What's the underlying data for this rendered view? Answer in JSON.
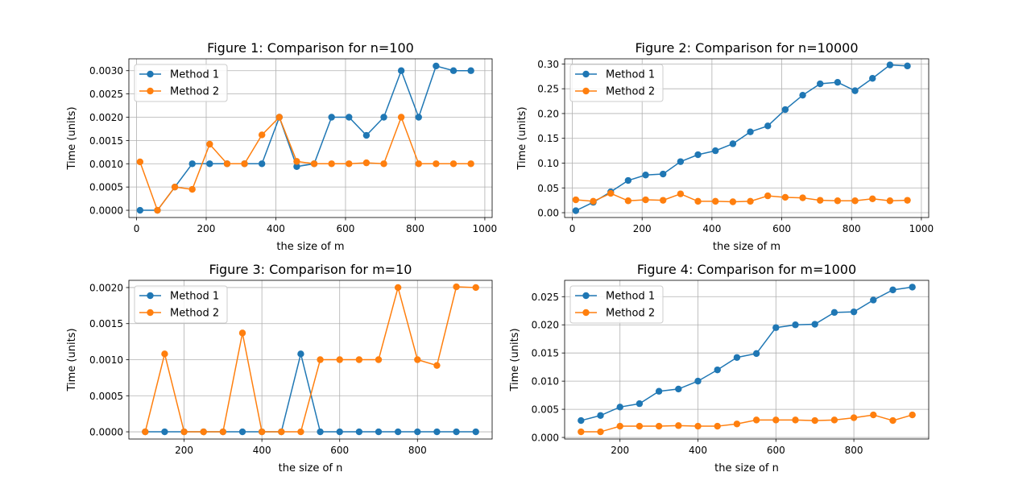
{
  "colors": {
    "method1": "#1f77b4",
    "method2": "#ff7f0e",
    "grid": "#b0b0b0"
  },
  "chart_data": [
    {
      "type": "line",
      "title": "Figure 1: Comparison for n=100",
      "xlabel": "the size of m",
      "ylabel": "Time (units)",
      "xlim": [
        -22,
        1021
      ],
      "ylim": [
        -0.000155,
        0.003255
      ],
      "xticks": [
        0,
        200,
        400,
        600,
        800,
        1000
      ],
      "xtick_labels": [
        "0",
        "200",
        "400",
        "600",
        "800",
        "1000"
      ],
      "yticks": [
        0,
        0.0005,
        0.001,
        0.0015,
        0.002,
        0.0025,
        0.003
      ],
      "ytick_labels": [
        "0.0000",
        "0.0005",
        "0.0010",
        "0.0015",
        "0.0020",
        "0.0025",
        "0.0030"
      ],
      "grid": true,
      "legend": "upper left",
      "x": [
        10,
        60,
        110,
        160,
        210,
        260,
        310,
        360,
        410,
        460,
        510,
        560,
        610,
        660,
        710,
        760,
        810,
        860,
        910,
        960
      ],
      "series": [
        {
          "name": "Method 1",
          "values": [
            0.0,
            0.0,
            0.0005,
            0.001,
            0.001,
            0.001,
            0.001,
            0.001,
            0.002,
            0.00094,
            0.001,
            0.002,
            0.002,
            0.00161,
            0.002,
            0.003,
            0.002,
            0.0031,
            0.003,
            0.003
          ]
        },
        {
          "name": "Method 2",
          "values": [
            0.00104,
            0.0,
            0.0005,
            0.00045,
            0.00142,
            0.001,
            0.001,
            0.00162,
            0.002,
            0.00105,
            0.001,
            0.001,
            0.001,
            0.00102,
            0.001,
            0.002,
            0.001,
            0.001,
            0.001,
            0.001
          ]
        }
      ]
    },
    {
      "type": "line",
      "title": "Figure 2: Comparison for n=10000",
      "xlabel": "the size of m",
      "ylabel": "Time (units)",
      "xlim": [
        -22,
        1021
      ],
      "ylim": [
        -0.0097,
        0.3104
      ],
      "xticks": [
        0,
        200,
        400,
        600,
        800,
        1000
      ],
      "xtick_labels": [
        "0",
        "200",
        "400",
        "600",
        "800",
        "1000"
      ],
      "yticks": [
        0,
        0.05,
        0.1,
        0.15,
        0.2,
        0.25,
        0.3
      ],
      "ytick_labels": [
        "0.00",
        "0.05",
        "0.10",
        "0.15",
        "0.20",
        "0.25",
        "0.30"
      ],
      "grid": true,
      "legend": "upper left",
      "x": [
        10,
        60,
        110,
        160,
        210,
        260,
        310,
        360,
        410,
        460,
        510,
        560,
        610,
        660,
        710,
        760,
        810,
        860,
        910,
        960
      ],
      "series": [
        {
          "name": "Method 1",
          "values": [
            0.004,
            0.021,
            0.042,
            0.065,
            0.076,
            0.078,
            0.103,
            0.117,
            0.125,
            0.139,
            0.163,
            0.175,
            0.208,
            0.237,
            0.26,
            0.263,
            0.246,
            0.271,
            0.298,
            0.296
          ]
        },
        {
          "name": "Method 2",
          "values": [
            0.026,
            0.023,
            0.039,
            0.024,
            0.026,
            0.025,
            0.038,
            0.023,
            0.023,
            0.022,
            0.023,
            0.034,
            0.031,
            0.03,
            0.025,
            0.024,
            0.024,
            0.028,
            0.024,
            0.025
          ]
        }
      ]
    },
    {
      "type": "line",
      "title": "Figure 3: Comparison for m=10",
      "xlabel": "the size of n",
      "ylabel": "Time (units)",
      "xlim": [
        58,
        992
      ],
      "ylim": [
        -0.0001,
        0.0021
      ],
      "xticks": [
        200,
        400,
        600,
        800
      ],
      "xtick_labels": [
        "200",
        "400",
        "600",
        "800"
      ],
      "yticks": [
        0,
        0.0005,
        0.001,
        0.0015,
        0.002
      ],
      "ytick_labels": [
        "0.0000",
        "0.0005",
        "0.0010",
        "0.0015",
        "0.0020"
      ],
      "grid": true,
      "legend": "upper left",
      "x": [
        100,
        150,
        200,
        250,
        300,
        350,
        400,
        450,
        500,
        550,
        600,
        650,
        700,
        750,
        800,
        850,
        900,
        950
      ],
      "series": [
        {
          "name": "Method 1",
          "values": [
            0,
            0,
            0,
            0,
            0,
            0,
            0,
            0,
            0.00108,
            0,
            0,
            0,
            0,
            0,
            0,
            0,
            0,
            0
          ]
        },
        {
          "name": "Method 2",
          "values": [
            0,
            0.00108,
            0,
            0,
            0,
            0.00137,
            0,
            0,
            0,
            0.001,
            0.001,
            0.001,
            0.001,
            0.002,
            0.001,
            0.00092,
            0.00201,
            0.002
          ]
        }
      ]
    },
    {
      "type": "line",
      "title": "Figure 4: Comparison for m=1000",
      "xlabel": "the size of n",
      "ylabel": "Time (units)",
      "xlim": [
        58,
        992
      ],
      "ylim": [
        -0.00028,
        0.0279
      ],
      "xticks": [
        200,
        400,
        600,
        800
      ],
      "xtick_labels": [
        "200",
        "400",
        "600",
        "800"
      ],
      "yticks": [
        0,
        0.005,
        0.01,
        0.015,
        0.02,
        0.025
      ],
      "ytick_labels": [
        "0.000",
        "0.005",
        "0.010",
        "0.015",
        "0.020",
        "0.025"
      ],
      "grid": true,
      "legend": "upper left",
      "x": [
        100,
        150,
        200,
        250,
        300,
        350,
        400,
        450,
        500,
        550,
        600,
        650,
        700,
        750,
        800,
        850,
        900,
        950
      ],
      "series": [
        {
          "name": "Method 1",
          "values": [
            0.003,
            0.0039,
            0.0054,
            0.006,
            0.0082,
            0.0086,
            0.01,
            0.012,
            0.0142,
            0.0149,
            0.0195,
            0.02,
            0.0201,
            0.0222,
            0.0223,
            0.0244,
            0.0262,
            0.0267
          ]
        },
        {
          "name": "Method 2",
          "values": [
            0.001,
            0.001,
            0.002,
            0.002,
            0.002,
            0.0021,
            0.002,
            0.002,
            0.0024,
            0.0031,
            0.0031,
            0.0031,
            0.003,
            0.0031,
            0.0035,
            0.004,
            0.003,
            0.004
          ]
        }
      ]
    }
  ]
}
